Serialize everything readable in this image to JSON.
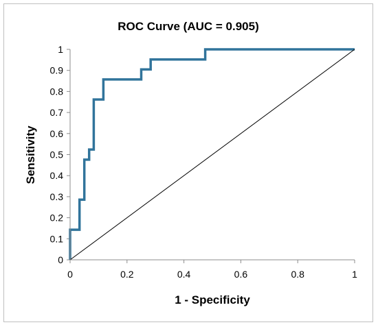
{
  "chart_data": {
    "type": "line",
    "title": "ROC Curve (AUC = 0.905)",
    "xlabel": "1 - Specificity",
    "ylabel": "Sensitivity",
    "xlim": [
      0,
      1
    ],
    "ylim": [
      0,
      1
    ],
    "x_ticks": [
      "0",
      "0.2",
      "0.4",
      "0.6",
      "0.8",
      "1"
    ],
    "y_ticks": [
      "0",
      "0.1",
      "0.2",
      "0.3",
      "0.4",
      "0.5",
      "0.6",
      "0.7",
      "0.8",
      "0.9",
      "1"
    ],
    "grid": false,
    "legend": "none",
    "series": [
      {
        "color": "#31749b",
        "step": true,
        "x": [
          0,
          0,
          0.033,
          0.033,
          0.05,
          0.05,
          0.067,
          0.067,
          0.083,
          0.083,
          0.117,
          0.117,
          0.25,
          0.25,
          0.283,
          0.283,
          0.475,
          0.475,
          1.0
        ],
        "y": [
          0,
          0.143,
          0.143,
          0.286,
          0.286,
          0.476,
          0.476,
          0.524,
          0.524,
          0.762,
          0.762,
          0.857,
          0.857,
          0.905,
          0.905,
          0.952,
          0.952,
          1.0,
          1.0
        ]
      },
      {
        "color": "#000000",
        "step": false,
        "x": [
          0,
          1
        ],
        "y": [
          0,
          1
        ]
      }
    ]
  }
}
